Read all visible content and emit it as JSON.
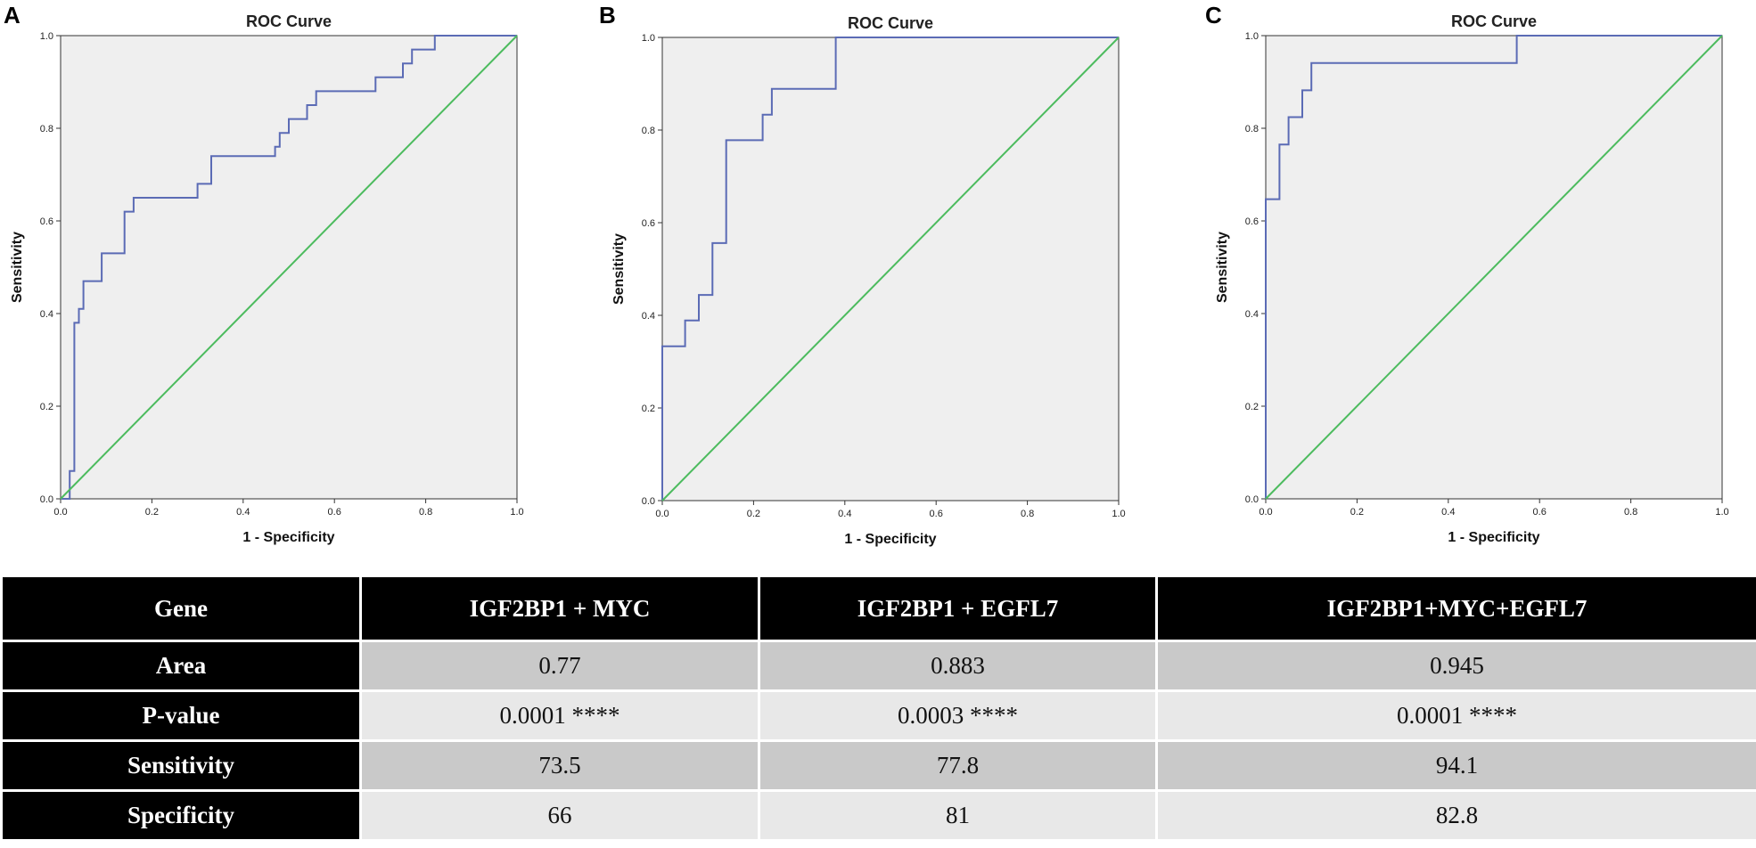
{
  "chart_data": [
    {
      "type": "line",
      "panel": "A",
      "title": "ROC Curve",
      "xlabel": "1 - Specificity",
      "ylabel": "Sensitivity",
      "xlim": [
        0,
        1
      ],
      "ylim": [
        0,
        1
      ],
      "xticks": [
        "0.0",
        "0.2",
        "0.4",
        "0.6",
        "0.8",
        "1.0"
      ],
      "yticks": [
        "0.0",
        "0.2",
        "0.4",
        "0.6",
        "0.8",
        "1.0"
      ],
      "grid": false,
      "series": [
        {
          "color": "#5b6bb5",
          "x": [
            0,
            0.02,
            0.02,
            0.03,
            0.03,
            0.04,
            0.04,
            0.05,
            0.05,
            0.09,
            0.09,
            0.14,
            0.14,
            0.16,
            0.16,
            0.3,
            0.3,
            0.33,
            0.33,
            0.47,
            0.47,
            0.48,
            0.48,
            0.5,
            0.5,
            0.51,
            0.51,
            0.54,
            0.54,
            0.56,
            0.56,
            0.69,
            0.69,
            0.75,
            0.75,
            0.77,
            0.77,
            0.82,
            0.82,
            1.0
          ],
          "y": [
            0,
            0,
            0.06,
            0.06,
            0.38,
            0.38,
            0.41,
            0.41,
            0.47,
            0.47,
            0.53,
            0.53,
            0.62,
            0.62,
            0.65,
            0.65,
            0.68,
            0.68,
            0.74,
            0.74,
            0.76,
            0.76,
            0.79,
            0.79,
            0.82,
            0.82,
            0.82,
            0.82,
            0.85,
            0.85,
            0.88,
            0.88,
            0.91,
            0.91,
            0.94,
            0.94,
            0.97,
            0.97,
            1.0,
            1.0
          ]
        },
        {
          "color": "#4cbb5e",
          "x": [
            0,
            1
          ],
          "y": [
            0,
            1
          ]
        }
      ]
    },
    {
      "type": "line",
      "panel": "B",
      "title": "ROC Curve",
      "xlabel": "1 - Specificity",
      "ylabel": "Sensitivity",
      "xlim": [
        0,
        1
      ],
      "ylim": [
        0,
        1
      ],
      "xticks": [
        "0.0",
        "0.2",
        "0.4",
        "0.6",
        "0.8",
        "1.0"
      ],
      "yticks": [
        "0.0",
        "0.2",
        "0.4",
        "0.6",
        "0.8",
        "1.0"
      ],
      "grid": false,
      "series": [
        {
          "color": "#5b6bb5",
          "x": [
            0,
            0,
            0.05,
            0.05,
            0.08,
            0.08,
            0.11,
            0.11,
            0.14,
            0.14,
            0.22,
            0.22,
            0.24,
            0.24,
            0.38,
            0.38,
            1.0
          ],
          "y": [
            0,
            0.333,
            0.333,
            0.389,
            0.389,
            0.444,
            0.444,
            0.556,
            0.556,
            0.778,
            0.778,
            0.833,
            0.833,
            0.889,
            0.889,
            1.0,
            1.0
          ]
        },
        {
          "color": "#4cbb5e",
          "x": [
            0,
            1
          ],
          "y": [
            0,
            1
          ]
        }
      ]
    },
    {
      "type": "line",
      "panel": "C",
      "title": "ROC Curve",
      "xlabel": "1 - Specificity",
      "ylabel": "Sensitivity",
      "xlim": [
        0,
        1
      ],
      "ylim": [
        0,
        1
      ],
      "xticks": [
        "0.0",
        "0.2",
        "0.4",
        "0.6",
        "0.8",
        "1.0"
      ],
      "yticks": [
        "0.0",
        "0.2",
        "0.4",
        "0.6",
        "0.8",
        "1.0"
      ],
      "grid": false,
      "series": [
        {
          "color": "#5b6bb5",
          "x": [
            0,
            0,
            0.03,
            0.03,
            0.05,
            0.05,
            0.08,
            0.08,
            0.1,
            0.1,
            0.14,
            0.14,
            0.55,
            0.55,
            1.0
          ],
          "y": [
            0,
            0.647,
            0.647,
            0.765,
            0.765,
            0.824,
            0.824,
            0.882,
            0.882,
            0.941,
            0.941,
            0.941,
            0.941,
            1.0,
            1.0
          ]
        },
        {
          "color": "#4cbb5e",
          "x": [
            0,
            1
          ],
          "y": [
            0,
            1
          ]
        }
      ]
    }
  ],
  "table": {
    "header": [
      "Gene",
      "IGF2BP1 + MYC",
      "IGF2BP1 + EGFL7",
      "IGF2BP1+MYC+EGFL7"
    ],
    "rows": [
      [
        "Area",
        "0.77",
        "0.883",
        "0.945"
      ],
      [
        "P-value",
        "0.0001 ****",
        "0.0003 ****",
        "0.0001 ****"
      ],
      [
        "Sensitivity",
        "73.5",
        "77.8",
        "94.1"
      ],
      [
        "Specificity",
        "66",
        "81",
        "82.8"
      ]
    ]
  }
}
